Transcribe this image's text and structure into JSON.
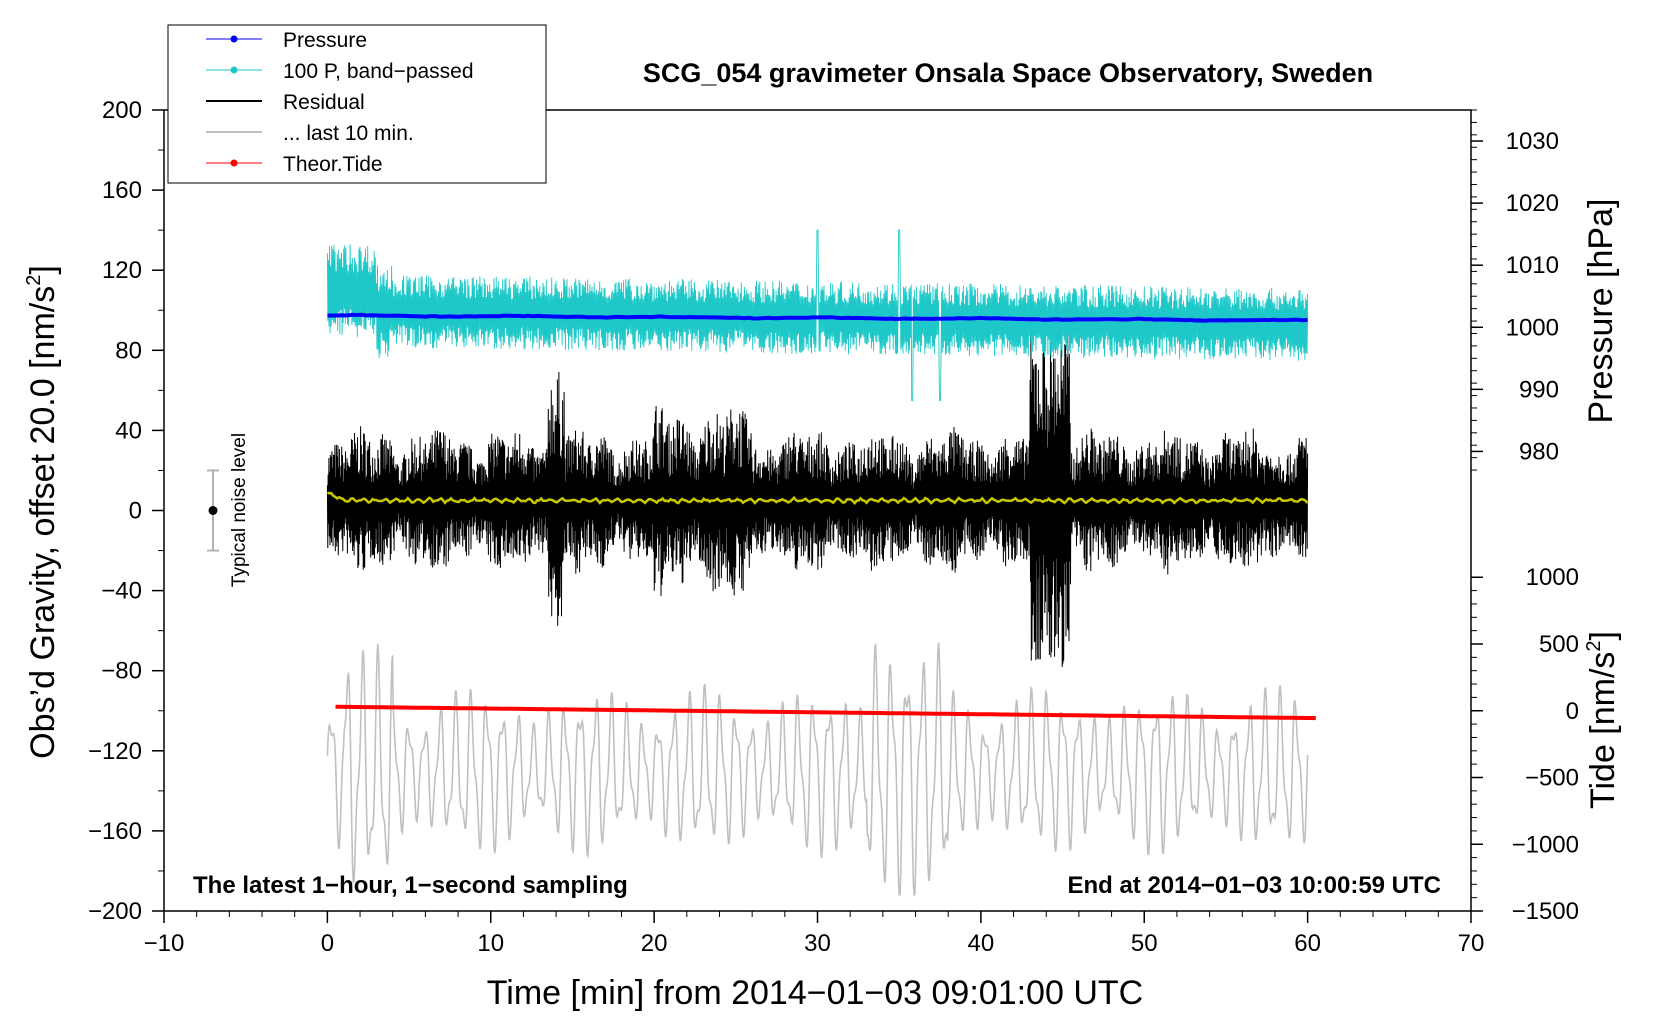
{
  "chart_data": {
    "type": "line",
    "title": "SCG_054 gravimeter Onsala Space Observatory, Sweden",
    "xlabel": "Time [min] from 2014−01−03 09:01:00 UTC",
    "ylabel_left": "Obs’d Gravity, offset 20.0 [nm/s²]",
    "ylabel_left_main": "Obs’d Gravity, offset 20.0 [nm/s",
    "ylabel_left_sup": "2",
    "ylabel_left_tail": "]",
    "ylabel_right_top": "Pressure [hPa]",
    "ylabel_right_bottom": "Tide [nm/s²]",
    "ylabel_right_bottom_main": "Tide [nm/s",
    "ylabel_right_bottom_sup": "2",
    "ylabel_right_bottom_tail": "]",
    "xlim": [
      -10,
      70
    ],
    "ylim_left": [
      -200,
      200
    ],
    "x_ticks": [
      -10,
      0,
      10,
      20,
      30,
      40,
      50,
      60,
      70
    ],
    "x_tick_labels": [
      "−10",
      "0",
      "10",
      "20",
      "30",
      "40",
      "50",
      "60",
      "70"
    ],
    "left_ticks": [
      200,
      160,
      120,
      80,
      40,
      0,
      -40,
      -80,
      -120,
      -160,
      -200
    ],
    "left_tick_labels": [
      "200",
      "160",
      "120",
      "80",
      "40",
      "0",
      "−40",
      "−80",
      "−120",
      "−160",
      "−200"
    ],
    "pressure_axis": {
      "ticks": [
        1030,
        1020,
        1010,
        1000,
        990,
        980
      ],
      "tick_labels": [
        "1030",
        "1020",
        "1010",
        "1000",
        "990",
        "980"
      ],
      "gravity_at_1000": 91.5,
      "gravity_per_hpa": 3.1
    },
    "tide_axis": {
      "ticks": [
        1000,
        500,
        0,
        -500,
        -1000,
        -1500
      ],
      "tick_labels": [
        "1000",
        "500",
        "0",
        "−500",
        "−1000",
        "−1500"
      ],
      "gravity_at_0": -100,
      "gravity_per_unit": 0.06667
    },
    "series": [
      {
        "name": "Pressure",
        "color": "#0000ff",
        "axis": "pressure",
        "x_range": [
          0,
          60
        ],
        "start": 1001.9,
        "end": 1001.1,
        "unit": "hPa"
      },
      {
        "name": "100 P, band−passed",
        "color": "#1ec8c8",
        "axis": "gravity",
        "x_range": [
          0,
          60
        ],
        "center": 100,
        "amplitude": 14
      },
      {
        "name": "Residual",
        "color": "#000000",
        "axis": "gravity",
        "x_range": [
          0,
          60
        ],
        "center": 5,
        "amplitude": 25
      },
      {
        "name": "... last 10 min.",
        "color": "#c0c0c0",
        "axis": "gravity",
        "x_range": [
          0,
          60
        ],
        "center": -130,
        "amplitude": 25
      },
      {
        "name": "Theor.Tide",
        "color": "#ff0000",
        "axis": "tide",
        "x_range": [
          0.5,
          60.5
        ],
        "start": 30,
        "end": -55,
        "unit": "nm/s²"
      }
    ],
    "smoothed_residual": {
      "color": "#c8c800",
      "value": 5
    },
    "noise_marker": {
      "label": "Typical noise level",
      "x": -7,
      "center": 0,
      "upper": 20,
      "lower": -20
    },
    "annotations": {
      "left": "The latest 1−hour, 1−second sampling",
      "right": "End at 2014−01−03 10:00:59 UTC"
    },
    "legend_position": "top-left",
    "grid": false
  },
  "colors": {
    "pressure": "#0000ff",
    "bandpassed": "#1ec8c8",
    "residual": "#000000",
    "residual_smooth": "#c8c800",
    "last10": "#c0c0c0",
    "tide": "#ff0000",
    "noise_bar": "#b4b4b4"
  }
}
